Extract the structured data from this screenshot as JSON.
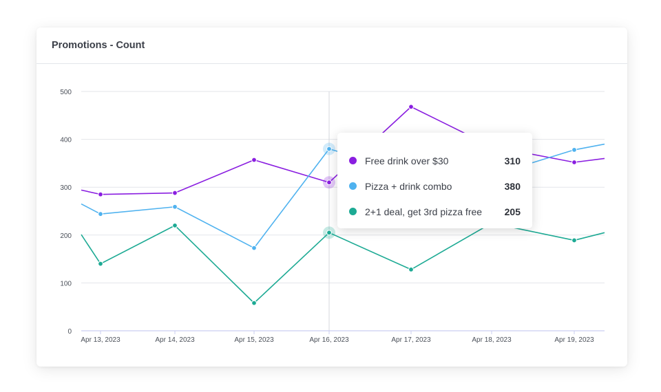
{
  "card": {
    "title": "Promotions - Count"
  },
  "colors": {
    "purple": "#8a1ee0",
    "blue": "#4fb2ef",
    "teal": "#1daa94",
    "grid": "#e3e5ea",
    "axis": "#c9cdf0"
  },
  "chart_data": {
    "type": "line",
    "title": "Promotions - Count",
    "x": [
      "Apr 13, 2023",
      "Apr 14, 2023",
      "Apr 15, 2023",
      "Apr 16, 2023",
      "Apr 17, 2023",
      "Apr 18, 2023",
      "Apr 19, 2023"
    ],
    "ylim": [
      0,
      500
    ],
    "yticks": [
      0,
      100,
      200,
      300,
      400,
      500
    ],
    "grid": true,
    "series": [
      {
        "name": "Free drink over $30",
        "color": "#8a1ee0",
        "values": [
          285,
          288,
          357,
          310,
          468,
          385,
          352
        ]
      },
      {
        "name": "Pizza + drink combo",
        "color": "#4fb2ef",
        "values": [
          244,
          259,
          173,
          380,
          330,
          325,
          378
        ]
      },
      {
        "name": "2+1 deal, get 3rd pizza free",
        "color": "#1daa94",
        "values": [
          140,
          220,
          58,
          205,
          128,
          225,
          189
        ]
      }
    ],
    "edge_start": [
      294,
      265,
      201
    ],
    "edge_end": [
      360,
      390,
      205
    ],
    "highlight_index": 3
  },
  "tooltip": {
    "rows": [
      {
        "label": "Free drink over $30",
        "value": "310",
        "color": "#8a1ee0"
      },
      {
        "label": "Pizza + drink combo",
        "value": "380",
        "color": "#4fb2ef"
      },
      {
        "label": "2+1 deal, get 3rd pizza free",
        "value": "205",
        "color": "#1daa94"
      }
    ]
  }
}
